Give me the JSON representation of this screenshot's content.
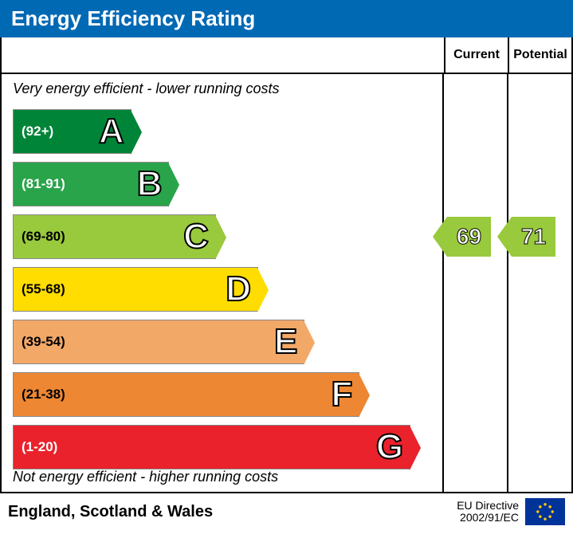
{
  "title": "Energy Efficiency Rating",
  "title_bg": "#0069b4",
  "title_color": "#ffffff",
  "columns": {
    "current": "Current",
    "potential": "Potential"
  },
  "note_top": "Very energy efficient - lower running costs",
  "note_bottom": "Not energy efficient - higher running costs",
  "bands": [
    {
      "letter": "A",
      "range": "(92+)",
      "color": "#008538",
      "range_color": "light",
      "width_pct": 28
    },
    {
      "letter": "B",
      "range": "(81-91)",
      "color": "#2aa44a",
      "range_color": "light",
      "width_pct": 37
    },
    {
      "letter": "C",
      "range": "(69-80)",
      "color": "#99c93c",
      "range_color": "dark",
      "width_pct": 48
    },
    {
      "letter": "D",
      "range": "(55-68)",
      "color": "#ffdd00",
      "range_color": "dark",
      "width_pct": 58
    },
    {
      "letter": "E",
      "range": "(39-54)",
      "color": "#f2a867",
      "range_color": "dark",
      "width_pct": 69
    },
    {
      "letter": "F",
      "range": "(21-38)",
      "color": "#ee8733",
      "range_color": "dark",
      "width_pct": 82
    },
    {
      "letter": "G",
      "range": "(1-20)",
      "color": "#e9222c",
      "range_color": "light",
      "width_pct": 94
    }
  ],
  "bar_row_height": 56,
  "bar_row_gap": 10,
  "current": {
    "value": 69,
    "band": "C",
    "color": "#99c93c"
  },
  "potential": {
    "value": 71,
    "band": "C",
    "color": "#99c93c"
  },
  "footer": {
    "region": "England, Scotland & Wales",
    "directive_line1": "EU Directive",
    "directive_line2": "2002/91/EC",
    "flag_bg": "#003399",
    "flag_star_color": "#ffcc00"
  }
}
